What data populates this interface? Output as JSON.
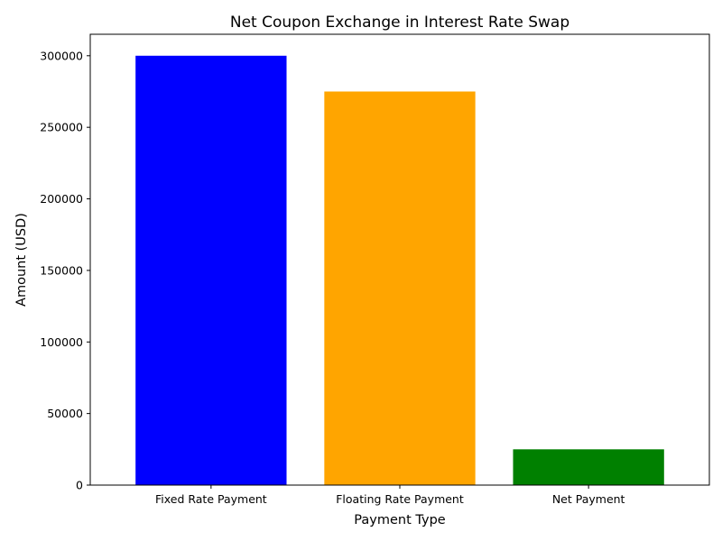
{
  "chart_data": {
    "type": "bar",
    "title": "Net Coupon Exchange in Interest Rate Swap",
    "xlabel": "Payment Type",
    "ylabel": "Amount (USD)",
    "categories": [
      "Fixed Rate Payment",
      "Floating Rate Payment",
      "Net Payment"
    ],
    "values": [
      300000,
      275000,
      25000
    ],
    "colors": [
      "#0000ff",
      "#ffa500",
      "#008000"
    ],
    "ylim": [
      0,
      315000
    ],
    "yticks": [
      0,
      50000,
      100000,
      150000,
      200000,
      250000,
      300000
    ],
    "ytick_labels": [
      "0",
      "50000",
      "100000",
      "150000",
      "200000",
      "250000",
      "300000"
    ],
    "grid": false,
    "legend": "none"
  }
}
